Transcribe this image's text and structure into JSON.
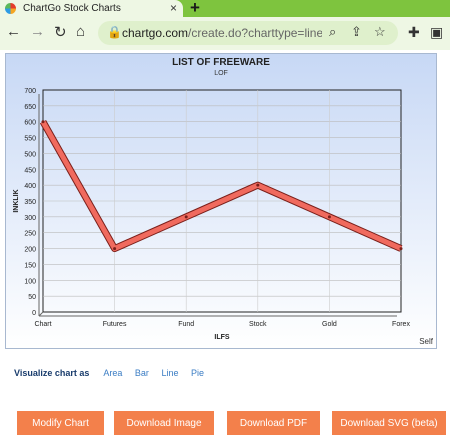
{
  "browser": {
    "tab_title": "ChartGo Stock Charts",
    "tab_close": "×",
    "new_tab": "+",
    "url_main": "chartgo.com",
    "url_path": "/create.do?charttype=line..."
  },
  "colors": {
    "tab_strip": "#7ec43e",
    "toolbar": "#eef7e4",
    "button": "#f3804b",
    "line": "#f06a5e",
    "link": "#3b7dc4"
  },
  "icons": {
    "back": "arrow-left",
    "forward": "arrow-right",
    "reload": "reload",
    "home": "home",
    "lock": "lock",
    "zoom": "magnifier",
    "share": "share",
    "bookmark": "star",
    "extensions": "puzzle",
    "sidebar": "sidebar"
  },
  "chart_data": {
    "type": "line",
    "title": "LIST OF FREEWARE",
    "subtitle": "LOF",
    "xlabel": "ILFS",
    "ylabel": "INKLIK",
    "categories": [
      "Chart",
      "Futures",
      "Fund",
      "Stock",
      "Gold",
      "Forex"
    ],
    "values": [
      600,
      200,
      300,
      400,
      300,
      200
    ],
    "ylim": [
      0,
      700
    ],
    "yticks": [
      0,
      50,
      100,
      150,
      200,
      250,
      300,
      350,
      400,
      450,
      500,
      550,
      600,
      650,
      700
    ],
    "grid": true,
    "legend": "none",
    "footer": "Self"
  },
  "visualize": {
    "label": "Visualize chart as",
    "options": [
      "Area",
      "Bar",
      "Line",
      "Pie"
    ]
  },
  "buttons": {
    "modify": "Modify Chart",
    "image": "Download Image",
    "pdf": "Download PDF",
    "svg": "Download SVG (beta)"
  }
}
